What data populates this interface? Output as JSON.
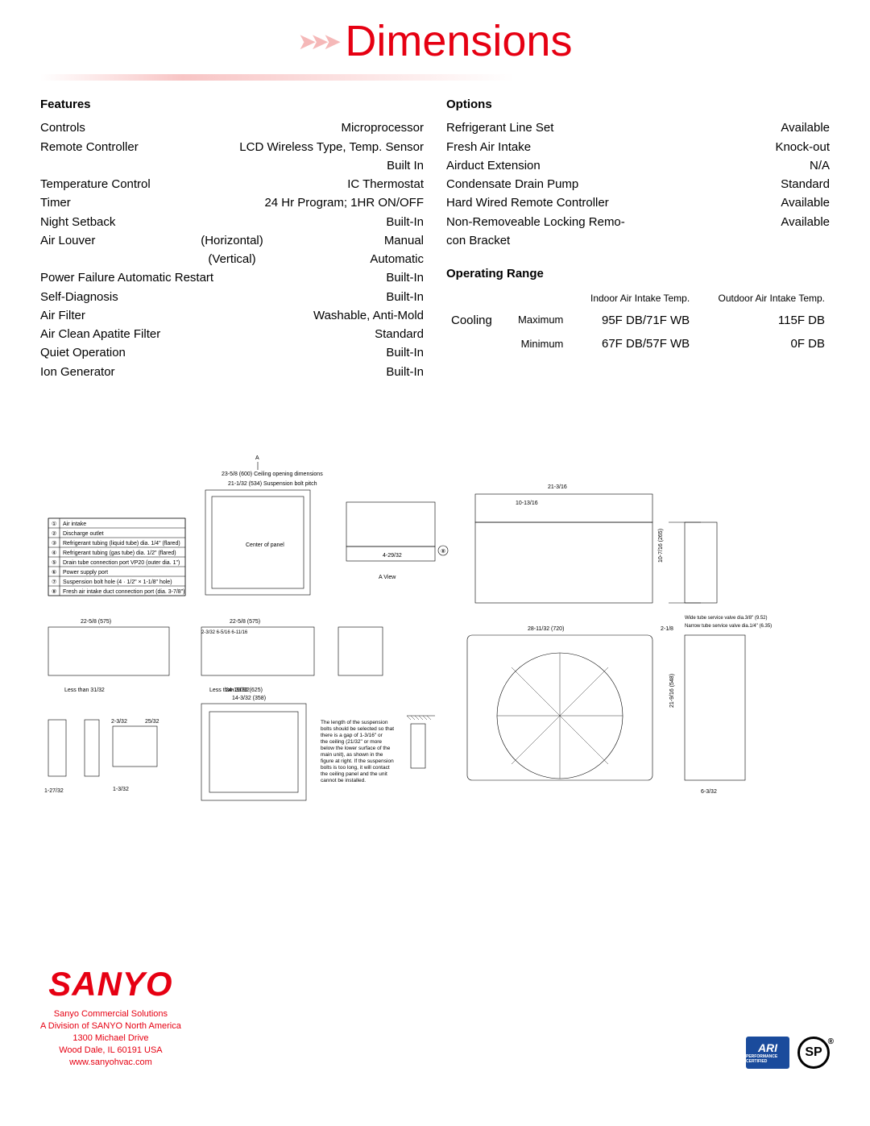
{
  "title": "Dimensions",
  "features": {
    "header": "Features",
    "rows": [
      {
        "l": "Controls",
        "r": "Microprocessor"
      },
      {
        "l": "Remote Controller",
        "r": "LCD Wireless Type, Temp. Sensor Built In"
      },
      {
        "l": "Temperature Control",
        "r": "IC Thermostat"
      },
      {
        "l": "Timer",
        "r": "24 Hr Program; 1HR ON/OFF"
      },
      {
        "l": "Night Setback",
        "r": "Built-In"
      }
    ],
    "louver_label": "Air Louver",
    "louver_h_l": "(Horizontal)",
    "louver_h_r": "Manual",
    "louver_v_l": "(Vertical)",
    "louver_v_r": "Automatic",
    "rows2": [
      {
        "l": "Power Failure Automatic Restart",
        "r": "Built-In"
      },
      {
        "l": "Self-Diagnosis",
        "r": "Built-In"
      },
      {
        "l": "Air Filter",
        "r": "Washable, Anti-Mold"
      },
      {
        "l": "Air Clean Apatite Filter",
        "r": "Standard"
      },
      {
        "l": "Quiet Operation",
        "r": "Built-In"
      },
      {
        "l": "Ion Generator",
        "r": "Built-In"
      }
    ]
  },
  "options": {
    "header": "Options",
    "rows": [
      {
        "l": "Refrigerant Line Set",
        "r": "Available"
      },
      {
        "l": "Fresh Air Intake",
        "r": "Knock-out"
      },
      {
        "l": "Airduct Extension",
        "r": "N/A"
      },
      {
        "l": "Condensate Drain Pump",
        "r": "Standard"
      },
      {
        "l": "Hard Wired Remote Controller",
        "r": "Available"
      },
      {
        "l": "Non-Removeable Locking Remo-con Bracket",
        "r": "Available"
      }
    ]
  },
  "range": {
    "header": "Operating Range",
    "h_indoor": "Indoor Air Intake Temp.",
    "h_outdoor": "Outdoor Air Intake Temp.",
    "mode": "Cooling",
    "max_l": "Maximum",
    "max_in": "95F DB/71F WB",
    "max_out": "115F DB",
    "min_l": "Minimum",
    "min_in": "67F DB/57F WB",
    "min_out": "0F DB"
  },
  "footer": {
    "logo": "SANYO",
    "l1": "Sanyo Commercial Solutions",
    "l2": "A Division of SANYO North America",
    "l3": "1300 Michael Drive",
    "l4": "Wood Dale, IL 60191 USA",
    "l5": "www.sanyohvac.com",
    "ari": "ARI",
    "csa": "SP"
  },
  "colors": {
    "accent": "#e60012",
    "pink": "#f5b8b8",
    "ari_bg": "#1a4b9c"
  }
}
